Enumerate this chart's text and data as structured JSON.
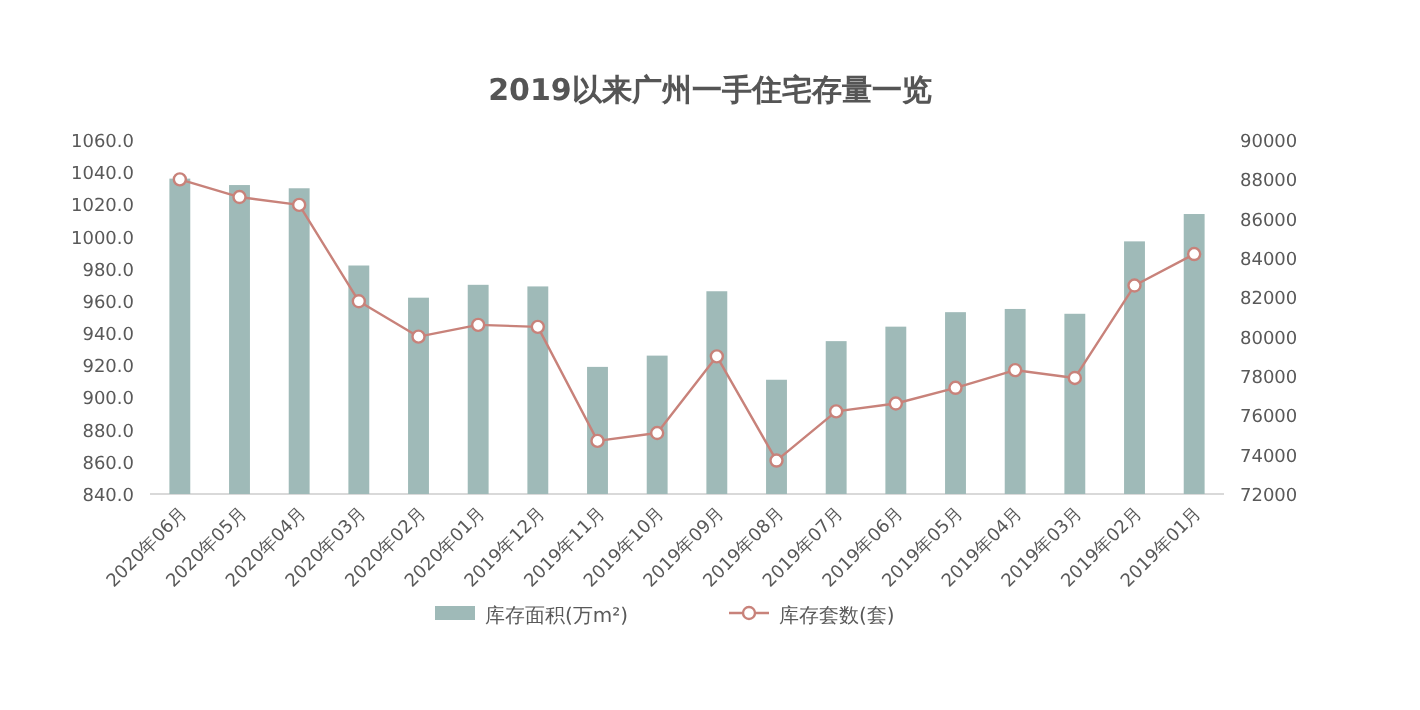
{
  "chart_data": {
    "type": "bar",
    "title": "2019以来广州一手住宅存量一览",
    "categories": [
      "2020年06月",
      "2020年05月",
      "2020年04月",
      "2020年03月",
      "2020年02月",
      "2020年01月",
      "2019年12月",
      "2019年11月",
      "2019年10月",
      "2019年09月",
      "2019年08月",
      "2019年07月",
      "2019年06月",
      "2019年05月",
      "2019年04月",
      "2019年03月",
      "2019年02月",
      "2019年01月"
    ],
    "series": [
      {
        "name": "库存面积(万m²)",
        "color": "#9fbab8",
        "values": [
          1036,
          1032,
          1030,
          982,
          962,
          970,
          969,
          919,
          926,
          966,
          911,
          935,
          944,
          953,
          955,
          952,
          997,
          1014
        ]
      },
      {
        "name": "库存套数(套)",
        "type": "line",
        "axis": "y2",
        "marker": "circle",
        "color": "#c8827a",
        "values": [
          88000,
          87100,
          86700,
          81800,
          80000,
          80600,
          80500,
          74700,
          75100,
          79000,
          73700,
          76200,
          76600,
          77400,
          78300,
          77900,
          82600,
          84200
        ]
      }
    ],
    "ylim": [
      840,
      1060
    ],
    "yticks": [
      {
        "value": 840,
        "label": "840.0"
      },
      {
        "value": 860,
        "label": "860.0"
      },
      {
        "value": 880,
        "label": "880.0"
      },
      {
        "value": 900,
        "label": "900.0"
      },
      {
        "value": 920,
        "label": "920.0"
      },
      {
        "value": 940,
        "label": "940.0"
      },
      {
        "value": 960,
        "label": "960.0"
      },
      {
        "value": 980,
        "label": "980.0"
      },
      {
        "value": 1000,
        "label": "1000.0"
      },
      {
        "value": 1020,
        "label": "1020.0"
      },
      {
        "value": 1040,
        "label": "1040.0"
      },
      {
        "value": 1060,
        "label": "1060.0"
      }
    ],
    "y2lim": [
      72000,
      90000
    ],
    "y2ticks": [
      72000,
      74000,
      76000,
      78000,
      80000,
      82000,
      84000,
      86000,
      88000,
      90000
    ],
    "legend": "bottom"
  }
}
